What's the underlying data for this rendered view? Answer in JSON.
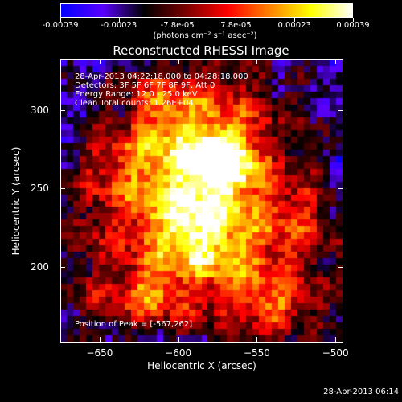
{
  "colorbar": {
    "tick_labels": [
      "-0.00039",
      "-0.00023",
      "-7.8e-05",
      "7.8e-05",
      "0.00023",
      "0.00039"
    ],
    "units": "(photons cm⁻² s⁻¹ asec⁻²)",
    "colormap": [
      "#0000ff",
      "#5a00ff",
      "#000000",
      "#7a0000",
      "#ff0000",
      "#ff8000",
      "#ffff00",
      "#ffffff"
    ]
  },
  "title": "Reconstructed RHESSI Image",
  "info": {
    "time_range": "28-Apr-2013 04:22:18.000 to 04:28:18.000",
    "detectors": "Detectors: 3F 5F 6F 7F 8F 9F, Att 0",
    "energy": "Energy Range: 12.0 - 25.0 keV",
    "clean": "Clean    Total counts: 1.26E+04",
    "peak": "Position of Peak = [-567,262]"
  },
  "chart_data": {
    "type": "heatmap",
    "title": "Reconstructed RHESSI Image",
    "xlabel": "Heliocentric X (arcsec)",
    "ylabel": "Heliocentric Y (arcsec)",
    "xlim": [
      -675,
      -495
    ],
    "ylim": [
      152,
      332
    ],
    "x_ticks": [
      "-650",
      "-600",
      "-550",
      "-500"
    ],
    "y_ticks": [
      "200",
      "250",
      "300"
    ],
    "value_range": [
      -0.00039,
      0.00039
    ],
    "peak_position": [
      -567,
      262
    ],
    "grid": false
  },
  "timestamp": "28-Apr-2013 06:14"
}
